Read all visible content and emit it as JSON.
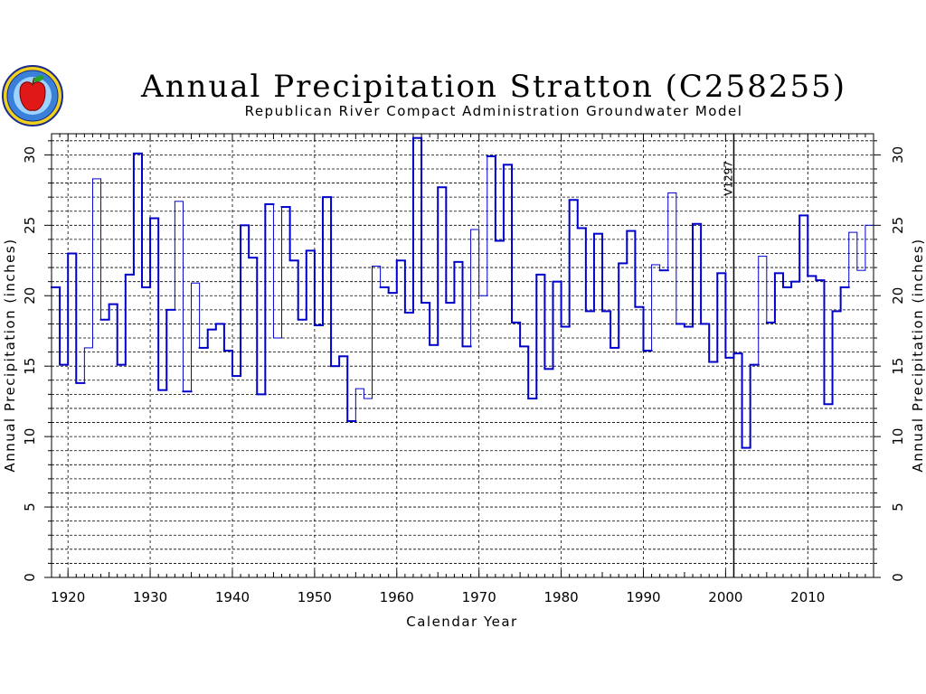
{
  "chart_data": {
    "type": "line",
    "subtype": "step",
    "title": "Annual Precipitation Stratton (C258255)",
    "subtitle": "Republican River Compact Administration Groundwater Model",
    "xlabel": "Calendar Year",
    "ylabel": "Annual Precipitation (inches)",
    "ylabel_right": "Annual Precipitation (inches)",
    "xlim": [
      1918,
      2018
    ],
    "ylim": [
      0,
      31.5
    ],
    "x_ticks": [
      1920,
      1930,
      1940,
      1950,
      1960,
      1970,
      1980,
      1990,
      2000,
      2010
    ],
    "y_ticks": [
      0,
      5,
      10,
      15,
      20,
      25,
      30
    ],
    "grid": true,
    "annotation": {
      "x": 2001,
      "label": "V1297"
    },
    "colors": {
      "series": "#0000cc",
      "grid": "#000000",
      "annotation": "#000000"
    },
    "logo": {
      "name": "rrca-apple-seal-icon"
    },
    "series": [
      {
        "x": [
          1918,
          1919,
          1920,
          1921,
          1922,
          1923,
          1924,
          1925,
          1926,
          1927,
          1928,
          1929,
          1930,
          1931,
          1932,
          1933,
          1934,
          1935,
          1936,
          1937,
          1938,
          1939,
          1940,
          1941,
          1942,
          1943,
          1944,
          1945,
          1946,
          1947,
          1948,
          1949,
          1950,
          1951,
          1952,
          1953,
          1954,
          1955,
          1956,
          1957,
          1958,
          1959,
          1960,
          1961,
          1962,
          1963,
          1964,
          1965,
          1966,
          1967,
          1968,
          1969,
          1970,
          1971,
          1972,
          1973,
          1974,
          1975,
          1976,
          1977,
          1978,
          1979,
          1980,
          1981,
          1982,
          1983,
          1984,
          1985,
          1986,
          1987,
          1988,
          1989,
          1990,
          1991,
          1992,
          1993,
          1994,
          1995,
          1996,
          1997,
          1998,
          1999,
          2000,
          2001,
          2002,
          2003,
          2004,
          2005,
          2006,
          2007,
          2008,
          2009,
          2010,
          2011,
          2012,
          2013,
          2014,
          2015,
          2016,
          2017
        ],
        "values": [
          20.6,
          15.1,
          23.0,
          13.8,
          16.3,
          28.3,
          18.3,
          19.4,
          15.1,
          21.5,
          30.1,
          20.6,
          25.5,
          13.3,
          19.0,
          26.7,
          13.2,
          20.9,
          16.3,
          17.6,
          18.0,
          16.1,
          14.3,
          25.0,
          22.7,
          13.0,
          26.5,
          17.0,
          26.3,
          22.5,
          18.3,
          23.2,
          17.9,
          27.0,
          15.0,
          15.7,
          11.1,
          13.4,
          12.7,
          22.1,
          20.6,
          20.2,
          22.5,
          18.8,
          31.2,
          19.5,
          16.5,
          27.7,
          19.5,
          22.4,
          16.4,
          24.7,
          20.0,
          29.9,
          23.9,
          29.3,
          18.1,
          16.4,
          12.7,
          21.5,
          14.8,
          21.0,
          17.8,
          26.8,
          24.8,
          18.9,
          24.4,
          18.9,
          16.3,
          22.3,
          24.6,
          19.2,
          16.1,
          22.2,
          21.8,
          27.3,
          18.0,
          17.8,
          25.1,
          18.0,
          15.3,
          21.6,
          15.6,
          15.9,
          9.2,
          15.1,
          22.8,
          18.1,
          21.6,
          20.6,
          21.0,
          25.7,
          21.4,
          21.1,
          12.3,
          18.9,
          20.6,
          24.5,
          21.8,
          25.0
        ],
        "line_width": [
          2,
          2,
          2,
          2,
          1,
          1,
          2,
          2,
          2,
          2,
          2,
          2,
          2,
          2,
          2,
          1,
          2,
          1,
          2,
          2,
          2,
          2,
          2,
          2,
          2,
          2,
          2,
          1,
          2,
          2,
          2,
          2,
          2,
          2,
          2,
          2,
          2,
          1,
          1,
          1,
          2,
          2,
          2,
          2,
          2,
          2,
          2,
          2,
          2,
          2,
          2,
          1,
          1,
          2,
          2,
          2,
          2,
          2,
          2,
          2,
          2,
          2,
          2,
          2,
          2,
          2,
          2,
          2,
          2,
          2,
          2,
          2,
          2,
          1,
          2,
          1,
          2,
          2,
          2,
          2,
          2,
          2,
          2,
          2,
          2,
          2,
          1,
          2,
          2,
          2,
          2,
          2,
          2,
          2,
          2,
          2,
          2,
          1,
          1,
          1
        ]
      }
    ]
  }
}
